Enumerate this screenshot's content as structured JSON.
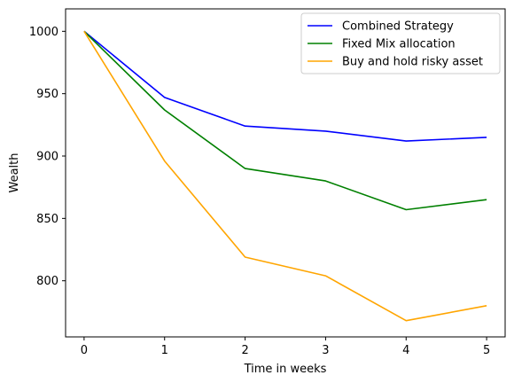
{
  "chart_data": {
    "type": "line",
    "title": "",
    "xlabel": "Time in weeks",
    "ylabel": "Wealth",
    "x": [
      0,
      1,
      2,
      3,
      4,
      5
    ],
    "xlim": [
      -0.23,
      5.23
    ],
    "ylim": [
      755,
      1018
    ],
    "xticks": [
      0,
      1,
      2,
      3,
      4,
      5
    ],
    "yticks": [
      800,
      850,
      900,
      950,
      1000
    ],
    "grid": false,
    "legend_position": "top-right",
    "series": [
      {
        "name": "Combined Strategy",
        "color": "#0000ff",
        "values": [
          1000,
          947,
          924,
          920,
          912,
          915
        ]
      },
      {
        "name": "Fixed Mix allocation",
        "color": "#008000",
        "values": [
          1000,
          937,
          890,
          880,
          857,
          865
        ]
      },
      {
        "name": "Buy and hold risky asset",
        "color": "#ffa500",
        "values": [
          1000,
          896,
          819,
          804,
          768,
          780
        ]
      }
    ]
  }
}
